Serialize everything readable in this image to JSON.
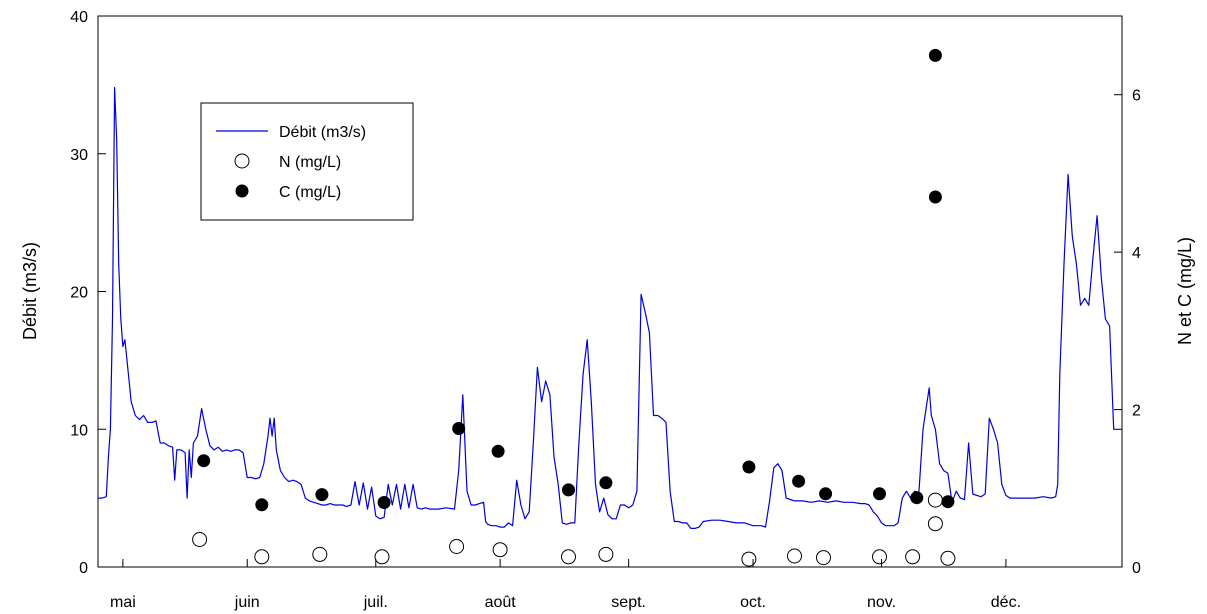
{
  "chart_data": {
    "type": "line",
    "title": "",
    "xlabel": "",
    "ylabel_left": "Débit (m3/s)",
    "ylabel_right": "N et C (mg/L)",
    "x_domain_days": [
      0,
      247
    ],
    "ylim_left": [
      0,
      40
    ],
    "ylim_right": [
      0,
      7
    ],
    "yticks_left": [
      0,
      10,
      20,
      30,
      40
    ],
    "yticks_right": [
      0,
      2,
      4,
      6
    ],
    "months": [
      {
        "label": "mai",
        "day": 6
      },
      {
        "label": "juin",
        "day": 36
      },
      {
        "label": "juil.",
        "day": 67
      },
      {
        "label": "août",
        "day": 97
      },
      {
        "label": "sept.",
        "day": 128
      },
      {
        "label": "oct.",
        "day": 158
      },
      {
        "label": "nov.",
        "day": 189
      },
      {
        "label": "déc.",
        "day": 219
      }
    ],
    "grid": false,
    "legend_position": "top-left",
    "series": [
      {
        "name": "Débit (m3/s)",
        "axis": "left",
        "kind": "line",
        "color": "#0000dd",
        "points": [
          [
            0,
            5
          ],
          [
            1,
            5
          ],
          [
            2,
            5.1
          ],
          [
            2.5,
            8
          ],
          [
            3,
            10
          ],
          [
            3.5,
            18
          ],
          [
            4,
            34.8
          ],
          [
            4.5,
            31
          ],
          [
            5,
            22
          ],
          [
            5.5,
            18
          ],
          [
            6,
            16
          ],
          [
            6.5,
            16.5
          ],
          [
            7,
            15
          ],
          [
            7.5,
            13.5
          ],
          [
            8,
            12
          ],
          [
            9,
            11
          ],
          [
            10,
            10.7
          ],
          [
            11,
            11
          ],
          [
            12,
            10.5
          ],
          [
            13,
            10.5
          ],
          [
            14,
            10.6
          ],
          [
            15,
            9
          ],
          [
            16,
            9
          ],
          [
            17,
            8.8
          ],
          [
            18,
            8.7
          ],
          [
            18.5,
            6.3
          ],
          [
            19,
            8.5
          ],
          [
            20,
            8.5
          ],
          [
            21,
            8.3
          ],
          [
            21.5,
            5
          ],
          [
            22,
            8.5
          ],
          [
            22.5,
            6.5
          ],
          [
            23,
            9
          ],
          [
            24,
            9.5
          ],
          [
            25,
            11.5
          ],
          [
            26,
            10
          ],
          [
            27,
            8.8
          ],
          [
            28,
            8.5
          ],
          [
            29,
            8.7
          ],
          [
            30,
            8.4
          ],
          [
            31,
            8.5
          ],
          [
            32,
            8.4
          ],
          [
            33,
            8.5
          ],
          [
            34,
            8.5
          ],
          [
            35,
            8.3
          ],
          [
            36,
            6.5
          ],
          [
            37,
            6.5
          ],
          [
            38,
            6.4
          ],
          [
            39,
            6.5
          ],
          [
            40,
            7.5
          ],
          [
            41,
            9.5
          ],
          [
            41.5,
            10.8
          ],
          [
            42,
            9.5
          ],
          [
            42.5,
            10.8
          ],
          [
            43,
            8.5
          ],
          [
            44,
            7
          ],
          [
            45,
            6.5
          ],
          [
            46,
            6.2
          ],
          [
            47,
            6.3
          ],
          [
            48,
            6.2
          ],
          [
            49,
            6
          ],
          [
            50,
            5
          ],
          [
            51,
            4.8
          ],
          [
            52,
            4.7
          ],
          [
            53,
            4.6
          ],
          [
            54,
            4.5
          ],
          [
            55,
            4.5
          ],
          [
            56,
            4.6
          ],
          [
            57,
            4.5
          ],
          [
            58,
            4.5
          ],
          [
            59,
            4.5
          ],
          [
            60,
            4.4
          ],
          [
            61,
            4.5
          ],
          [
            62,
            6.2
          ],
          [
            63,
            4.5
          ],
          [
            64,
            6.1
          ],
          [
            65,
            4.2
          ],
          [
            66,
            5.8
          ],
          [
            67,
            3.7
          ],
          [
            68,
            3.5
          ],
          [
            69,
            3.6
          ],
          [
            70,
            6
          ],
          [
            71,
            4.5
          ],
          [
            72,
            6
          ],
          [
            73,
            4.2
          ],
          [
            74,
            6
          ],
          [
            75,
            4.3
          ],
          [
            76,
            6
          ],
          [
            77,
            4.3
          ],
          [
            78,
            4.2
          ],
          [
            79,
            4.3
          ],
          [
            80,
            4.2
          ],
          [
            82,
            4.2
          ],
          [
            84,
            4.3
          ],
          [
            86,
            4.2
          ],
          [
            87,
            7
          ],
          [
            88,
            12.5
          ],
          [
            89,
            5.5
          ],
          [
            90,
            4.5
          ],
          [
            91,
            4.5
          ],
          [
            92,
            4.6
          ],
          [
            93,
            4.7
          ],
          [
            93.5,
            3.3
          ],
          [
            94,
            3.1
          ],
          [
            95,
            3
          ],
          [
            96,
            3
          ],
          [
            97,
            2.9
          ],
          [
            98,
            2.9
          ],
          [
            99,
            3.2
          ],
          [
            100,
            3
          ],
          [
            101,
            6.3
          ],
          [
            102,
            4.5
          ],
          [
            103,
            3.5
          ],
          [
            104,
            4
          ],
          [
            105,
            9
          ],
          [
            106,
            14.5
          ],
          [
            107,
            12
          ],
          [
            108,
            13.5
          ],
          [
            109,
            12.5
          ],
          [
            110,
            8
          ],
          [
            111,
            6
          ],
          [
            112,
            3.2
          ],
          [
            113,
            3.1
          ],
          [
            114,
            3.2
          ],
          [
            115,
            3.2
          ],
          [
            116,
            9
          ],
          [
            117,
            14
          ],
          [
            118,
            16.5
          ],
          [
            119,
            12
          ],
          [
            120,
            6
          ],
          [
            121,
            4
          ],
          [
            122,
            5
          ],
          [
            123,
            3.8
          ],
          [
            124,
            3.5
          ],
          [
            125,
            3.5
          ],
          [
            126,
            4.5
          ],
          [
            127,
            4.5
          ],
          [
            128,
            4.3
          ],
          [
            129,
            4.5
          ],
          [
            130,
            5.5
          ],
          [
            131,
            19.8
          ],
          [
            132,
            18.5
          ],
          [
            133,
            17
          ],
          [
            134,
            11
          ],
          [
            135,
            11
          ],
          [
            136,
            10.8
          ],
          [
            137,
            10.5
          ],
          [
            138,
            5.5
          ],
          [
            139,
            3.3
          ],
          [
            140,
            3.3
          ],
          [
            141,
            3.2
          ],
          [
            142,
            3.2
          ],
          [
            143,
            2.8
          ],
          [
            144,
            2.8
          ],
          [
            145,
            2.9
          ],
          [
            146,
            3.3
          ],
          [
            148,
            3.4
          ],
          [
            150,
            3.4
          ],
          [
            152,
            3.3
          ],
          [
            154,
            3.2
          ],
          [
            156,
            3.2
          ],
          [
            158,
            3
          ],
          [
            159,
            3
          ],
          [
            160,
            3
          ],
          [
            161,
            2.9
          ],
          [
            162,
            4.8
          ],
          [
            163,
            7.2
          ],
          [
            164,
            7.5
          ],
          [
            165,
            7
          ],
          [
            166,
            5
          ],
          [
            167,
            4.9
          ],
          [
            168,
            4.8
          ],
          [
            170,
            4.8
          ],
          [
            172,
            4.7
          ],
          [
            174,
            4.8
          ],
          [
            176,
            4.7
          ],
          [
            178,
            4.8
          ],
          [
            180,
            4.7
          ],
          [
            182,
            4.7
          ],
          [
            184,
            4.6
          ],
          [
            185,
            4.6
          ],
          [
            186,
            4.5
          ],
          [
            187,
            4
          ],
          [
            188,
            3.7
          ],
          [
            189,
            3.2
          ],
          [
            190,
            3
          ],
          [
            191,
            3
          ],
          [
            192,
            3
          ],
          [
            193,
            3.2
          ],
          [
            194,
            5
          ],
          [
            195,
            5.5
          ],
          [
            196,
            5
          ],
          [
            197,
            5.5
          ],
          [
            198,
            5.4
          ],
          [
            199,
            10
          ],
          [
            200,
            12
          ],
          [
            200.5,
            13
          ],
          [
            201,
            11
          ],
          [
            202,
            10
          ],
          [
            203,
            7.5
          ],
          [
            204,
            7
          ],
          [
            205,
            6.8
          ],
          [
            206,
            4.7
          ],
          [
            207,
            5.5
          ],
          [
            208,
            5
          ],
          [
            209,
            4.9
          ],
          [
            210,
            9
          ],
          [
            211,
            5.3
          ],
          [
            212,
            5.2
          ],
          [
            213,
            5.1
          ],
          [
            214,
            5.3
          ],
          [
            215,
            10.8
          ],
          [
            216,
            10
          ],
          [
            217,
            9
          ],
          [
            218,
            6
          ],
          [
            219,
            5.2
          ],
          [
            220,
            5
          ],
          [
            222,
            5
          ],
          [
            224,
            5
          ],
          [
            226,
            5
          ],
          [
            228,
            5.1
          ],
          [
            230,
            5
          ],
          [
            231,
            5.1
          ],
          [
            231.5,
            6
          ],
          [
            232,
            14
          ],
          [
            233,
            22
          ],
          [
            234,
            28.5
          ],
          [
            235,
            24
          ],
          [
            236,
            22
          ],
          [
            237,
            19
          ],
          [
            238,
            19.5
          ],
          [
            239,
            19
          ],
          [
            240,
            22.5
          ],
          [
            241,
            25.5
          ],
          [
            242,
            21
          ],
          [
            243,
            18
          ],
          [
            244,
            17.5
          ],
          [
            245,
            10
          ],
          [
            246,
            10
          ],
          [
            247,
            10
          ]
        ]
      },
      {
        "name": "N (mg/L)",
        "axis": "right",
        "kind": "scatter",
        "marker": "open-circle",
        "points": [
          [
            24.5,
            0.35
          ],
          [
            39.5,
            0.13
          ],
          [
            53.5,
            0.16
          ],
          [
            68.5,
            0.13
          ],
          [
            86.5,
            0.26
          ],
          [
            97,
            0.22
          ],
          [
            113.5,
            0.13
          ],
          [
            122.5,
            0.16
          ],
          [
            157,
            0.1
          ],
          [
            168,
            0.14
          ],
          [
            175,
            0.12
          ],
          [
            188.5,
            0.13
          ],
          [
            196.5,
            0.13
          ],
          [
            202,
            0.55
          ],
          [
            202,
            0.85
          ],
          [
            205,
            0.11
          ]
        ]
      },
      {
        "name": "C (mg/L)",
        "axis": "right",
        "kind": "scatter",
        "marker": "filled-circle",
        "points": [
          [
            25.5,
            1.35
          ],
          [
            39.5,
            0.79
          ],
          [
            54,
            0.92
          ],
          [
            69,
            0.82
          ],
          [
            87,
            1.76
          ],
          [
            96.5,
            1.47
          ],
          [
            113.5,
            0.98
          ],
          [
            122.5,
            1.07
          ],
          [
            157,
            1.27
          ],
          [
            169,
            1.09
          ],
          [
            175.5,
            0.93
          ],
          [
            188.5,
            0.93
          ],
          [
            197.5,
            0.88
          ],
          [
            202,
            6.5
          ],
          [
            202,
            4.7
          ],
          [
            205,
            0.83
          ]
        ]
      }
    ]
  }
}
